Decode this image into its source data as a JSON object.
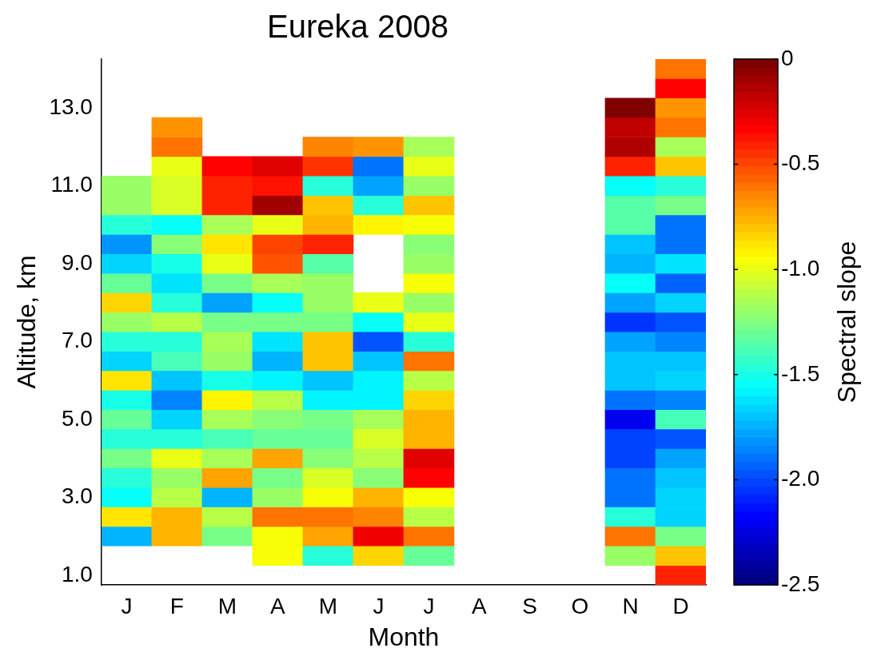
{
  "chart_data": {
    "type": "heatmap",
    "title": "Eureka 2008",
    "xlabel": "Month",
    "ylabel": "Altitude, km",
    "clabel": "Spectral slope",
    "categories": [
      "J",
      "F",
      "M",
      "A",
      "M",
      "J",
      "J",
      "A",
      "S",
      "O",
      "N",
      "D"
    ],
    "ylim": [
      0.75,
      14.25
    ],
    "yticks": [
      {
        "value": 1,
        "label": "1.0"
      },
      {
        "value": 3,
        "label": "3.0"
      },
      {
        "value": 5,
        "label": "5.0"
      },
      {
        "value": 7,
        "label": "7.0"
      },
      {
        "value": 9,
        "label": "9.0"
      },
      {
        "value": 11,
        "label": "11.0"
      },
      {
        "value": 13,
        "label": "13.0"
      }
    ],
    "clim": [
      -2.5,
      0
    ],
    "cticks": [
      {
        "value": -2.5,
        "label": "-2.5"
      },
      {
        "value": -2,
        "label": "-2.0"
      },
      {
        "value": -1.5,
        "label": "-1.5"
      },
      {
        "value": -1,
        "label": "-1.0"
      },
      -0.5,
      0
    ],
    "cells": [
      [
        null,
        null,
        null,
        null,
        null,
        null,
        null,
        null,
        null,
        null,
        null,
        -0.6
      ],
      [
        null,
        null,
        null,
        null,
        null,
        null,
        null,
        null,
        null,
        null,
        null,
        -0.33
      ],
      [
        null,
        null,
        null,
        null,
        null,
        null,
        null,
        null,
        null,
        null,
        -0.03,
        -0.7
      ],
      [
        null,
        -0.7,
        null,
        null,
        null,
        null,
        null,
        null,
        null,
        null,
        -0.18,
        -0.62
      ],
      [
        null,
        -0.6,
        null,
        null,
        -0.65,
        -0.7,
        -1.15,
        null,
        null,
        null,
        -0.15,
        -1.15
      ],
      [
        null,
        -1.0,
        -0.33,
        -0.25,
        -0.45,
        -1.9,
        -1.0,
        null,
        null,
        null,
        -0.42,
        -0.82
      ],
      [
        -1.2,
        -1.05,
        -0.42,
        -0.38,
        -1.45,
        -1.78,
        -1.2,
        null,
        null,
        null,
        -1.55,
        -1.47
      ],
      [
        -1.2,
        -1.05,
        -0.42,
        -0.1,
        -0.8,
        -1.47,
        -0.82,
        null,
        null,
        null,
        -1.35,
        -1.28
      ],
      [
        -1.45,
        -1.55,
        -1.15,
        -1.0,
        -0.75,
        -0.9,
        -0.97,
        null,
        null,
        null,
        -1.35,
        -1.9
      ],
      [
        -1.8,
        -1.25,
        -0.88,
        -0.5,
        -0.42,
        null,
        -1.25,
        null,
        null,
        null,
        -1.68,
        -1.9
      ],
      [
        -1.65,
        -1.5,
        -1.0,
        -0.53,
        -1.35,
        null,
        -1.2,
        null,
        null,
        null,
        -1.72,
        -1.63
      ],
      [
        -1.3,
        -1.63,
        -1.28,
        -1.15,
        -1.2,
        null,
        -0.94,
        null,
        null,
        null,
        -1.56,
        -1.94
      ],
      [
        -0.85,
        -1.45,
        -1.78,
        -1.56,
        -1.2,
        -1.0,
        -1.2,
        null,
        null,
        null,
        -1.78,
        -1.65
      ],
      [
        -1.2,
        -1.1,
        -1.28,
        -1.28,
        -1.28,
        -1.56,
        -1.0,
        null,
        null,
        null,
        -2.06,
        -1.97
      ],
      [
        -1.45,
        -1.45,
        -1.15,
        -1.63,
        -0.82,
        -1.97,
        -1.45,
        null,
        null,
        null,
        -1.78,
        -1.87
      ],
      [
        -1.66,
        -1.4,
        -1.2,
        -1.72,
        -0.82,
        -1.7,
        -0.62,
        null,
        null,
        null,
        -1.7,
        -1.7
      ],
      [
        -0.88,
        -1.68,
        -1.5,
        -1.6,
        -1.7,
        -1.6,
        -1.1,
        null,
        null,
        null,
        -1.7,
        -1.65
      ],
      [
        -1.52,
        -1.87,
        -0.9,
        -1.1,
        -1.6,
        -1.6,
        -0.85,
        null,
        null,
        null,
        -1.9,
        -1.87
      ],
      [
        -1.3,
        -1.66,
        -1.15,
        -1.25,
        -1.28,
        -1.15,
        -0.75,
        null,
        null,
        null,
        -2.19,
        -1.4
      ],
      [
        -1.45,
        -1.45,
        -1.4,
        -1.3,
        -1.3,
        -1.05,
        -0.75,
        null,
        null,
        null,
        -2.03,
        -1.97
      ],
      [
        -1.28,
        -1.0,
        -1.15,
        -0.72,
        -1.25,
        -1.1,
        -0.25,
        null,
        null,
        null,
        -2.03,
        -1.78
      ],
      [
        -1.47,
        -1.2,
        -0.72,
        -1.28,
        -1.05,
        -1.25,
        -0.35,
        null,
        null,
        null,
        -1.9,
        -1.7
      ],
      [
        -1.55,
        -1.1,
        -1.72,
        -1.2,
        -0.94,
        -0.78,
        -0.97,
        null,
        null,
        null,
        -1.9,
        -1.65
      ],
      [
        -0.88,
        -0.75,
        -1.1,
        -0.62,
        -0.6,
        -0.65,
        -1.1,
        null,
        null,
        null,
        -1.47,
        -1.65
      ],
      [
        -1.72,
        -0.75,
        -1.28,
        -0.94,
        -0.72,
        -0.3,
        -0.62,
        null,
        null,
        null,
        -0.62,
        -1.28
      ],
      [
        null,
        null,
        null,
        -0.94,
        -1.47,
        -0.85,
        -1.3,
        null,
        null,
        null,
        -1.2,
        -0.82
      ],
      [
        null,
        null,
        null,
        null,
        null,
        null,
        null,
        null,
        null,
        null,
        null,
        -0.42
      ]
    ]
  }
}
